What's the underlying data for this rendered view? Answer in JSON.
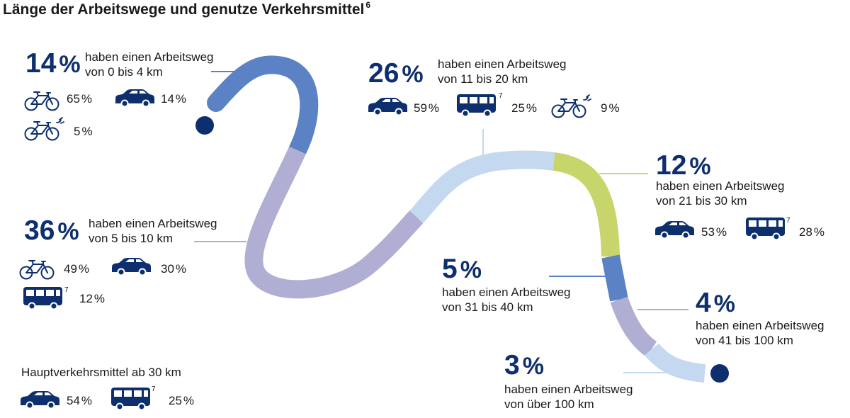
{
  "title": "Länge der Arbeitswege und genutze Verkehrsmittel",
  "title_footnote": "6",
  "colors": {
    "navy": "#0e2f6e",
    "seg_0_4": "#5b82c4",
    "seg_5_10": "#b0aed3",
    "seg_11_20": "#c4d8f0",
    "seg_21_30": "#c8d56a",
    "seg_31_40": "#5b82c4",
    "seg_41_100": "#b0aed3",
    "seg_100plus": "#c4d8f0"
  },
  "segments": [
    {
      "percent": "14",
      "sign": "%",
      "line1": "haben einen Arbeitsweg",
      "line2": "von 0 bis 4 km",
      "modes": [
        {
          "icon": "bicycle-icon",
          "value": "65",
          "sign": "%"
        },
        {
          "icon": "car-icon",
          "value": "14",
          "sign": "%"
        },
        {
          "icon": "e-bike-icon",
          "value": "5",
          "sign": "%"
        }
      ]
    },
    {
      "percent": "36",
      "sign": "%",
      "line1": "haben einen Arbeitsweg",
      "line2": "von 5 bis 10 km",
      "modes": [
        {
          "icon": "bicycle-icon",
          "value": "49",
          "sign": "%"
        },
        {
          "icon": "car-icon",
          "value": "30",
          "sign": "%"
        },
        {
          "icon": "bus-icon",
          "value": "12",
          "sign": "%",
          "footnote": "7"
        }
      ]
    },
    {
      "percent": "26",
      "sign": "%",
      "line1": "haben einen Arbeitsweg",
      "line2": "von 11 bis 20 km",
      "modes": [
        {
          "icon": "car-icon",
          "value": "59",
          "sign": "%"
        },
        {
          "icon": "bus-icon",
          "value": "25",
          "sign": "%",
          "footnote": "7"
        },
        {
          "icon": "e-bike-icon",
          "value": "9",
          "sign": "%"
        }
      ]
    },
    {
      "percent": "12",
      "sign": "%",
      "line1": "haben einen Arbeitsweg",
      "line2": "von 21 bis 30 km",
      "modes": [
        {
          "icon": "car-icon",
          "value": "53",
          "sign": "%"
        },
        {
          "icon": "bus-icon",
          "value": "28",
          "sign": "%",
          "footnote": "7"
        }
      ]
    },
    {
      "percent": "5",
      "sign": "%",
      "line1": "haben einen Arbeitsweg",
      "line2": "von 31 bis 40 km"
    },
    {
      "percent": "4",
      "sign": "%",
      "line1": "haben einen Arbeitsweg",
      "line2": "von 41 bis 100 km"
    },
    {
      "percent": "3",
      "sign": "%",
      "line1": "haben einen Arbeitsweg",
      "line2": "von über 100 km"
    }
  ],
  "main_mode": {
    "label": "Hauptverkehrsmittel ab 30 km",
    "modes": [
      {
        "icon": "car-icon",
        "value": "54",
        "sign": "%"
      },
      {
        "icon": "bus-icon",
        "value": "25",
        "sign": "%",
        "footnote": "7"
      }
    ]
  }
}
